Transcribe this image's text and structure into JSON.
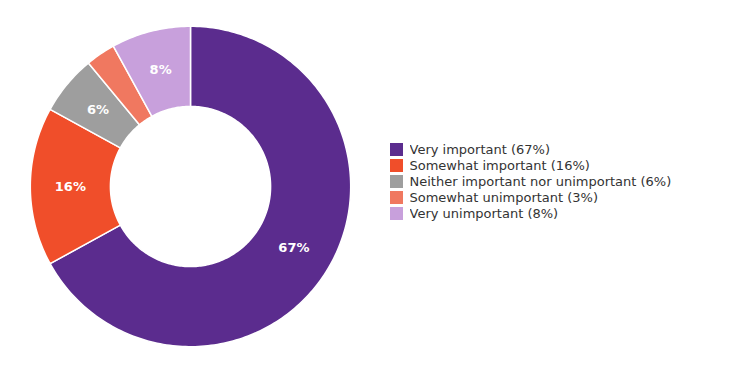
{
  "chart_data": {
    "type": "pie",
    "categories": [
      "Very important (67%)",
      "Somewhat important (16%)",
      "Neither important nor unimportant (6%)",
      "Somewhat unimportant (3%)",
      "Very unimportant (8%)"
    ],
    "values": [
      67,
      16,
      6,
      3,
      8
    ],
    "value_labels": [
      "67%",
      "16%",
      "6%",
      null,
      "8%"
    ],
    "data_labels": true,
    "colors": [
      "#5b2c8e",
      "#f04e2a",
      "#9e9e9e",
      "#f07860",
      "#c8a0dc"
    ]
  }
}
